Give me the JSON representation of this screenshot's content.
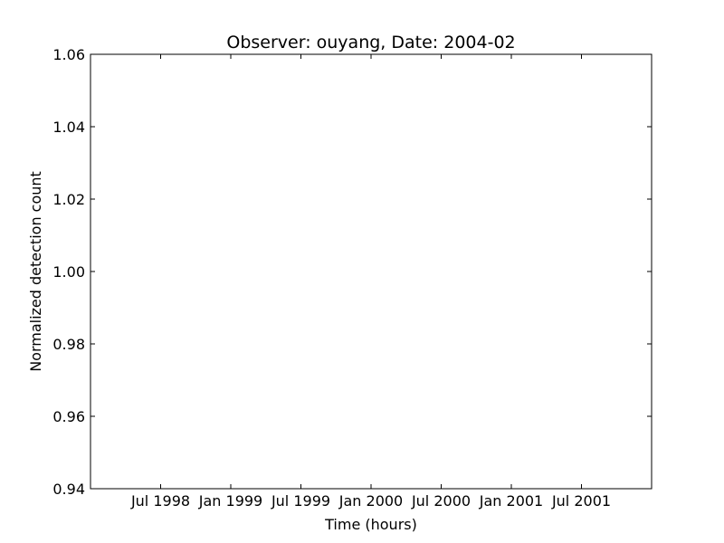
{
  "chart_data": {
    "type": "line",
    "title": "Observer: ouyang, Date: 2004-02",
    "xlabel": "Time (hours)",
    "ylabel": "Normalized detection count",
    "x_ticks": [
      "Jul 1998",
      "Jan 1999",
      "Jul 1999",
      "Jan 2000",
      "Jul 2000",
      "Jan 2001",
      "Jul 2001"
    ],
    "y_ticks": [
      "0.94",
      "0.96",
      "0.98",
      "1.00",
      "1.02",
      "1.04",
      "1.06"
    ],
    "ylim": [
      0.94,
      1.06
    ],
    "series": [],
    "grid": false,
    "legend": "none"
  }
}
